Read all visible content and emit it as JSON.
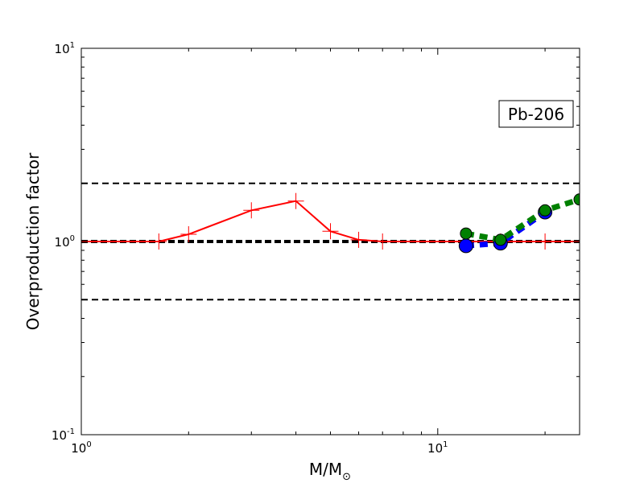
{
  "chart_data": {
    "type": "line",
    "xscale": "log",
    "yscale": "log",
    "xlim": [
      1,
      25
    ],
    "ylim": [
      0.1,
      10
    ],
    "xlabel": "M/M",
    "xlabel_symbol": "⊙",
    "ylabel": "Overproduction factor",
    "x_ticks": [
      {
        "value": 1,
        "base": "10",
        "exp": "0"
      },
      {
        "value": 10,
        "base": "10",
        "exp": "1"
      }
    ],
    "y_ticks": [
      {
        "value": 0.1,
        "base": "10",
        "exp": "-1"
      },
      {
        "value": 1,
        "base": "10",
        "exp": "0"
      },
      {
        "value": 10,
        "base": "10",
        "exp": "1"
      }
    ],
    "annotation": "Pb-206",
    "reference_lines": [
      {
        "y": 2.0,
        "style": "dashed",
        "color": "#000000",
        "weight": "thin"
      },
      {
        "y": 1.0,
        "style": "dashed",
        "color": "#000000",
        "weight": "thick"
      },
      {
        "y": 0.5,
        "style": "dashed",
        "color": "#000000",
        "weight": "thin"
      }
    ],
    "series": [
      {
        "color": "#ff0000",
        "line": "solid",
        "marker": "plus",
        "x": [
          1.0,
          1.65,
          2.0,
          3.0,
          4.0,
          5.0,
          6.0,
          7.0,
          12.0,
          15.0,
          20.0,
          25.0
        ],
        "y": [
          1.0,
          1.0,
          1.09,
          1.45,
          1.62,
          1.13,
          1.02,
          1.0,
          1.0,
          1.0,
          1.0,
          1.0
        ]
      },
      {
        "color": "#0000ff",
        "line": "dashed",
        "marker": "circle",
        "x": [
          12.0,
          15.0,
          20.0
        ],
        "y": [
          0.95,
          0.98,
          1.42
        ]
      },
      {
        "color": "#008000",
        "line": "dashed",
        "marker": "circle",
        "x": [
          12.0,
          15.0,
          20.0,
          25.0
        ],
        "y": [
          1.1,
          1.02,
          1.45,
          1.65
        ]
      }
    ]
  }
}
